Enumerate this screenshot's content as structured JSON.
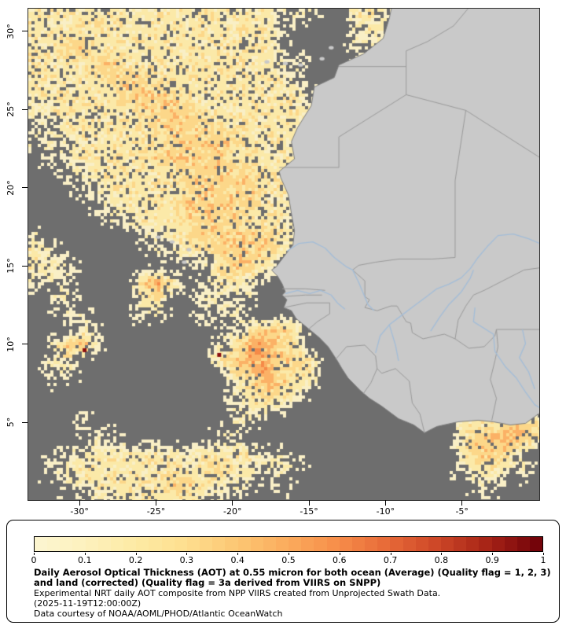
{
  "map": {
    "bounds": {
      "lon_min": -33.4,
      "lon_max": 0.0,
      "lat_min": 0.1,
      "lat_max": 31.5
    },
    "lat_ticks": [
      {
        "label": "30°",
        "value": 30
      },
      {
        "label": "25°",
        "value": 25
      },
      {
        "label": "20°",
        "value": 20
      },
      {
        "label": "15°",
        "value": 15
      },
      {
        "label": "10°",
        "value": 10
      },
      {
        "label": "5°",
        "value": 5
      }
    ],
    "lon_ticks": [
      {
        "label": "-30°",
        "value": -30
      },
      {
        "label": "-25°",
        "value": -25
      },
      {
        "label": "-20°",
        "value": -20
      },
      {
        "label": "-15°",
        "value": -15
      },
      {
        "label": "-10°",
        "value": -10
      },
      {
        "label": "-5°",
        "value": -5
      }
    ],
    "colors": {
      "ocean_nodata": "#6e6e6e",
      "land": "#c9c9c9",
      "coast": "#7e7e7e",
      "border": "#9a9a9a",
      "river": "#a3bdd8"
    },
    "aot_palette": [
      "#f9efc6",
      "#fbe9a8",
      "#fcd789",
      "#fbb166",
      "#f58a48",
      "#8b0f0f"
    ],
    "aot_grid": [
      "2222222222222222111002210000000000",
      "2222222222222222100001210000000000",
      "2233222222222222100001100000000000",
      "2222332222222222110000000000000000",
      "2222233322222222210000000000000000",
      "2222223333222222221000000000000000",
      "1222222333322222221000000000000000",
      "1122222233332222221000000000000000",
      "1112222223333322210000000000000000",
      "0112222233333222220000000000000000",
      "0011222222333332220000000000000000",
      "0001122222333332220000000000000000",
      "0000112222333332210000000000000000",
      "0000011222333322200000000000000000",
      "1000000112233333210000000000000000",
      "2100000011223333200000000000000000",
      "2210000000012332000000000000000000",
      "1110000342012210000000000000000000",
      "0110000230011110000000000000000000",
      "0011000110011100000000000000000000",
      "0001100000000123320000000000000000",
      "0134100000001244320000000000000000",
      "0120000000002344332000000000000000",
      "0110000000000234322000000000000000",
      "0000000000000123320000000000000000",
      "0000000000000122100000000000000000",
      "0001000000000110000000000000222332",
      "0000110000001100000000000000234432",
      "0011222222122221100000000000233210",
      "0112222222223221210000000000122110",
      "0011222223322110100000000000011000",
      "0000112222211000000000000000000000"
    ],
    "aot_specks": [
      {
        "col": 12.0,
        "row": 21.6
      },
      {
        "col": 3.2,
        "row": 21.3
      }
    ],
    "geo": {
      "coast": [
        [
          -9.6,
          31.8
        ],
        [
          -9.8,
          30.9
        ],
        [
          -10.2,
          29.6
        ],
        [
          -11.5,
          28.6
        ],
        [
          -13.1,
          27.9
        ],
        [
          -13.4,
          27.1
        ],
        [
          -14.7,
          26.5
        ],
        [
          -14.9,
          25.3
        ],
        [
          -15.8,
          23.9
        ],
        [
          -16.2,
          23.0
        ],
        [
          -16.0,
          21.9
        ],
        [
          -17.0,
          21.1
        ],
        [
          -16.9,
          20.7
        ],
        [
          -16.4,
          19.6
        ],
        [
          -16.2,
          18.4
        ],
        [
          -16.0,
          17.3
        ],
        [
          -16.1,
          16.4
        ],
        [
          -16.5,
          15.9
        ],
        [
          -17.2,
          15.0
        ],
        [
          -17.5,
          14.8
        ],
        [
          -17.1,
          14.4
        ],
        [
          -16.8,
          13.9
        ],
        [
          -16.6,
          13.4
        ],
        [
          -16.8,
          13.2
        ],
        [
          -16.5,
          12.9
        ],
        [
          -16.7,
          12.4
        ],
        [
          -16.2,
          12.2
        ],
        [
          -15.9,
          11.7
        ],
        [
          -15.4,
          11.3
        ],
        [
          -14.9,
          10.9
        ],
        [
          -14.4,
          10.5
        ],
        [
          -13.8,
          9.9
        ],
        [
          -13.2,
          9.0
        ],
        [
          -12.9,
          8.5
        ],
        [
          -12.5,
          7.9
        ],
        [
          -11.7,
          7.1
        ],
        [
          -11.1,
          6.6
        ],
        [
          -10.3,
          6.1
        ],
        [
          -9.2,
          5.3
        ],
        [
          -8.2,
          4.9
        ],
        [
          -7.5,
          4.4
        ],
        [
          -6.7,
          4.8
        ],
        [
          -5.3,
          5.1
        ],
        [
          -4.0,
          5.2
        ],
        [
          -3.0,
          5.1
        ],
        [
          -1.9,
          4.9
        ],
        [
          -0.9,
          5.0
        ],
        [
          0.5,
          6.0
        ],
        [
          0.5,
          31.8
        ]
      ],
      "borders": [
        [
          [
            -13.1,
            27.8
          ],
          [
            -8.7,
            27.8
          ]
        ],
        [
          [
            -4.4,
            31.8
          ],
          [
            -5.6,
            30.4
          ],
          [
            -7.3,
            29.4
          ],
          [
            -8.7,
            28.8
          ],
          [
            -8.7,
            27.8
          ]
        ],
        [
          [
            -8.7,
            27.8
          ],
          [
            -8.7,
            26.0
          ],
          [
            -13.1,
            23.3
          ],
          [
            -13.1,
            21.35
          ]
        ],
        [
          [
            -17.0,
            21.35
          ],
          [
            -13.1,
            21.35
          ]
        ],
        [
          [
            -8.7,
            26.0
          ],
          [
            -4.8,
            25.0
          ]
        ],
        [
          [
            -4.8,
            25.0
          ],
          [
            0.5,
            21.7
          ]
        ],
        [
          [
            -4.8,
            25.0
          ],
          [
            -5.5,
            20.5
          ],
          [
            -5.5,
            15.6
          ]
        ],
        [
          [
            -5.5,
            15.6
          ],
          [
            -7.0,
            15.5
          ],
          [
            -9.2,
            15.5
          ],
          [
            -10.7,
            15.3
          ],
          [
            -11.8,
            15.1
          ],
          [
            -12.2,
            14.8
          ]
        ],
        [
          [
            -12.2,
            14.8
          ],
          [
            -11.4,
            14.1
          ],
          [
            -11.4,
            13.1
          ],
          [
            -11.1,
            12.9
          ],
          [
            -11.4,
            12.4
          ]
        ],
        [
          [
            -16.7,
            12.4
          ],
          [
            -15.2,
            12.7
          ],
          [
            -13.7,
            12.7
          ]
        ],
        [
          [
            -13.7,
            12.7
          ],
          [
            -13.7,
            12.0
          ],
          [
            -14.5,
            11.5
          ],
          [
            -15.1,
            11.0
          ]
        ],
        [
          [
            -11.4,
            12.4
          ],
          [
            -10.6,
            12.2
          ],
          [
            -9.7,
            12.5
          ],
          [
            -9.3,
            12.5
          ],
          [
            -8.7,
            11.5
          ],
          [
            -8.4,
            11.4
          ],
          [
            -8.3,
            10.8
          ]
        ],
        [
          [
            -8.3,
            10.8
          ],
          [
            -7.6,
            10.4
          ],
          [
            -6.7,
            10.6
          ],
          [
            -6.2,
            10.7
          ],
          [
            -5.5,
            10.4
          ]
        ],
        [
          [
            -5.5,
            10.4
          ],
          [
            -5.3,
            11.6
          ],
          [
            -4.8,
            12.5
          ],
          [
            -4.3,
            13.2
          ],
          [
            -3.6,
            13.5
          ],
          [
            -3.0,
            13.8
          ],
          [
            -2.2,
            14.2
          ],
          [
            -1.0,
            14.8
          ],
          [
            0.5,
            15.0
          ]
        ],
        [
          [
            -5.5,
            10.4
          ],
          [
            -4.6,
            9.8
          ],
          [
            -3.6,
            9.9
          ],
          [
            -2.9,
            10.6
          ],
          [
            -2.8,
            11.0
          ]
        ],
        [
          [
            -2.8,
            11.0
          ],
          [
            -1.6,
            11.0
          ],
          [
            -0.5,
            11.0
          ],
          [
            0.5,
            11.0
          ]
        ],
        [
          [
            -3.1,
            5.2
          ],
          [
            -2.8,
            6.6
          ],
          [
            -3.2,
            7.8
          ],
          [
            -2.9,
            9.0
          ],
          [
            -2.7,
            9.9
          ],
          [
            -2.8,
            11.0
          ]
        ],
        [
          [
            -13.3,
            9.1
          ],
          [
            -12.6,
            9.9
          ],
          [
            -11.4,
            10.0
          ],
          [
            -10.7,
            9.3
          ]
        ],
        [
          [
            -10.7,
            9.3
          ],
          [
            -10.6,
            8.5
          ],
          [
            -10.3,
            8.2
          ],
          [
            -9.4,
            8.5
          ],
          [
            -8.5,
            7.7
          ],
          [
            -8.3,
            6.3
          ]
        ],
        [
          [
            -11.5,
            6.9
          ],
          [
            -11.0,
            7.6
          ],
          [
            -10.6,
            8.5
          ]
        ],
        [
          [
            -8.3,
            6.3
          ],
          [
            -7.8,
            5.6
          ],
          [
            -7.5,
            4.4
          ]
        ],
        [
          [
            -16.8,
            13.6
          ],
          [
            -15.3,
            13.6
          ],
          [
            -14.0,
            13.5
          ]
        ],
        [
          [
            -16.7,
            13.1
          ],
          [
            -15.3,
            13.2
          ],
          [
            -14.2,
            13.2
          ]
        ]
      ],
      "rivers": [
        [
          [
            -16.5,
            16.0
          ],
          [
            -15.7,
            16.5
          ],
          [
            -14.8,
            16.6
          ],
          [
            -14.0,
            16.2
          ],
          [
            -13.4,
            15.6
          ],
          [
            -12.6,
            15.0
          ],
          [
            -12.2,
            14.8
          ],
          [
            -11.8,
            14.0
          ],
          [
            -11.5,
            13.3
          ],
          [
            -11.2,
            12.6
          ],
          [
            -10.8,
            12.2
          ]
        ],
        [
          [
            -16.6,
            13.3
          ],
          [
            -15.8,
            13.5
          ],
          [
            -15.0,
            13.3
          ],
          [
            -14.3,
            13.5
          ],
          [
            -13.6,
            13.2
          ],
          [
            -13.2,
            12.7
          ],
          [
            -12.7,
            12.3
          ]
        ],
        [
          [
            -10.7,
            9.5
          ],
          [
            -10.4,
            10.6
          ],
          [
            -9.8,
            11.3
          ],
          [
            -9.0,
            11.9
          ],
          [
            -8.2,
            12.5
          ],
          [
            -7.5,
            13.0
          ],
          [
            -6.7,
            13.6
          ],
          [
            -5.9,
            13.9
          ],
          [
            -5.1,
            14.3
          ],
          [
            -4.5,
            14.9
          ],
          [
            -4.0,
            15.6
          ],
          [
            -3.4,
            16.3
          ],
          [
            -2.7,
            17.0
          ],
          [
            -1.7,
            17.1
          ],
          [
            -0.7,
            16.8
          ],
          [
            0.5,
            16.3
          ]
        ],
        [
          [
            -9.2,
            9.0
          ],
          [
            -9.4,
            10.0
          ],
          [
            -9.8,
            11.3
          ]
        ],
        [
          [
            -7.1,
            10.9
          ],
          [
            -6.5,
            11.8
          ],
          [
            -5.9,
            12.6
          ],
          [
            -5.1,
            13.4
          ],
          [
            -4.5,
            14.3
          ],
          [
            -4.3,
            14.8
          ]
        ],
        [
          [
            -4.2,
            12.4
          ],
          [
            -4.3,
            11.5
          ],
          [
            -3.0,
            10.7
          ],
          [
            -2.9,
            9.6
          ],
          [
            -2.2,
            8.6
          ],
          [
            -1.5,
            7.9
          ],
          [
            -0.9,
            7.0
          ],
          [
            -0.3,
            6.2
          ],
          [
            0.2,
            5.9
          ]
        ],
        [
          [
            -1.1,
            11.0
          ],
          [
            -0.9,
            10.1
          ],
          [
            -1.3,
            9.2
          ],
          [
            -0.7,
            8.3
          ],
          [
            -0.3,
            7.2
          ]
        ]
      ],
      "islands": [
        [
          -17.8,
          28.1
        ],
        [
          -16.6,
          28.0
        ],
        [
          -15.6,
          27.9
        ],
        [
          -14.2,
          28.3
        ],
        [
          -13.6,
          29.0
        ],
        [
          -24.9,
          16.9
        ],
        [
          -24.0,
          16.6
        ],
        [
          -23.2,
          15.3
        ],
        [
          -22.9,
          16.1
        ]
      ]
    }
  },
  "legend": {
    "colorbar": {
      "stops": [
        {
          "v": 0.0,
          "c": "#fcf6d2"
        },
        {
          "v": 0.1,
          "c": "#fdf1bd"
        },
        {
          "v": 0.2,
          "c": "#fdeaa4"
        },
        {
          "v": 0.3,
          "c": "#fede8e"
        },
        {
          "v": 0.4,
          "c": "#fcc673"
        },
        {
          "v": 0.5,
          "c": "#fbab5c"
        },
        {
          "v": 0.6,
          "c": "#f68c49"
        },
        {
          "v": 0.7,
          "c": "#e66737"
        },
        {
          "v": 0.8,
          "c": "#ca4426"
        },
        {
          "v": 0.9,
          "c": "#a32015"
        },
        {
          "v": 1.0,
          "c": "#6d0009"
        }
      ],
      "steps": 40,
      "tick_labels": [
        "0",
        "0.1",
        "0.2",
        "0.3",
        "0.4",
        "0.5",
        "0.6",
        "0.7",
        "0.8",
        "0.9",
        "1"
      ]
    },
    "title": "Daily Aerosol Optical Thickness (AOT) at 0.55 micron for both ocean (Average) (Quality flag = 1, 2, 3) and land (corrected) (Quality flag = 3a derived from VIIRS on SNPP)",
    "description": "Experimental NRT daily AOT composite from NPP VIIRS created from Unprojected Swath Data.",
    "timestamp": "(2025-11-19T12:00:00Z)",
    "credit": "Data courtesy of NOAA/AOML/PHOD/Atlantic OceanWatch"
  }
}
